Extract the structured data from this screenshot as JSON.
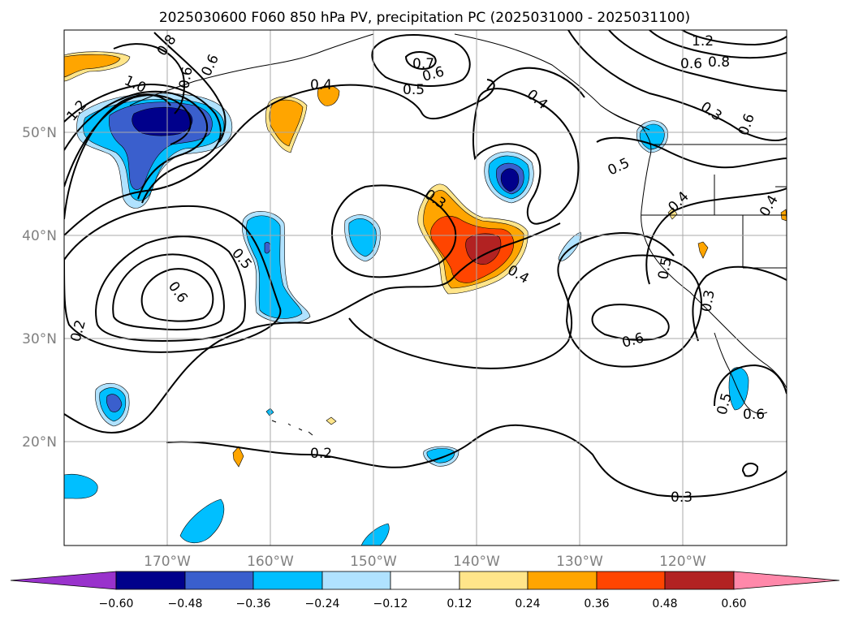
{
  "title": "2025030600 F060 850 hPa PV, precipitation PC (2025031000 - 2025031100)",
  "map": {
    "lon_labels": [
      "170°W",
      "160°W",
      "150°W",
      "140°W",
      "130°W",
      "120°W"
    ],
    "lat_labels": [
      "50°N",
      "40°N",
      "30°N",
      "20°N"
    ],
    "gridlines": true
  },
  "colorbar": {
    "ticks": [
      "−0.60",
      "−0.48",
      "−0.36",
      "−0.24",
      "−0.12",
      "0.12",
      "0.24",
      "0.36",
      "0.48",
      "0.60"
    ],
    "colors": [
      "#9932cc",
      "#00008b",
      "#3a5fcd",
      "#00bfff",
      "#b0e2ff",
      "#ffffff",
      "#ffe58a",
      "#ffa500",
      "#ff4500",
      "#b22222",
      "#ff88aa"
    ],
    "extend": "both"
  },
  "contour_labels": [
    "0.8",
    "0.6",
    "0.6",
    "1.0",
    "1.2",
    "0.4",
    "0.7",
    "0.6",
    "0.5",
    "0.4",
    "1.2",
    "0.6",
    "0.8",
    "0.3",
    "0.6",
    "0.5",
    "0.4",
    "0.4",
    "0.3",
    "0.4",
    "0.5",
    "0.6",
    "0.2",
    "0.5",
    "0.6",
    "0.3",
    "0.5",
    "0.6",
    "0.2",
    "0.3"
  ]
}
